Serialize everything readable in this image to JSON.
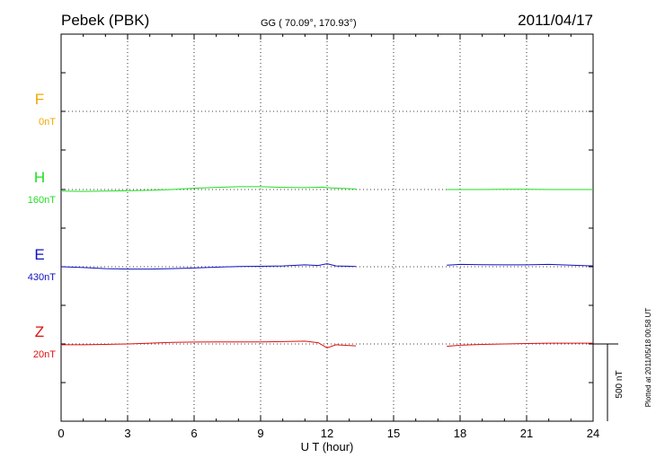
{
  "header": {
    "station": "Pebek (PBK)",
    "coords": "GG ( 70.09°, 170.93°)",
    "date": "2011/04/17"
  },
  "footer": {
    "plotted": "Plotted at 2011/05/18 00:58 UT"
  },
  "chart_data": {
    "type": "line",
    "xlabel": "U T (hour)",
    "xlim": [
      0,
      24
    ],
    "xticks": [
      0,
      3,
      6,
      9,
      12,
      15,
      18,
      21,
      24
    ],
    "scale_bar": {
      "label": "500 nT",
      "nT": 500
    },
    "components": [
      {
        "name": "F",
        "offset_label": "0nT",
        "color": "#f0a800",
        "samples": []
      },
      {
        "name": "H",
        "offset_label": "160nT",
        "color": "#22dd22",
        "samples": [
          [
            0,
            -10
          ],
          [
            1,
            -12
          ],
          [
            2,
            -10
          ],
          [
            3,
            -8
          ],
          [
            4,
            -5
          ],
          [
            5,
            0
          ],
          [
            6,
            8
          ],
          [
            7,
            14
          ],
          [
            8,
            18
          ],
          [
            9,
            18
          ],
          [
            10,
            14
          ],
          [
            11,
            12
          ],
          [
            11.8,
            15
          ],
          [
            12.2,
            10
          ],
          [
            13,
            5
          ],
          [
            13.3,
            3
          ],
          [
            17.4,
            0
          ],
          [
            18,
            0
          ],
          [
            19,
            0
          ],
          [
            20,
            2
          ],
          [
            21,
            2
          ],
          [
            22,
            0
          ],
          [
            23,
            0
          ],
          [
            24,
            0
          ]
        ]
      },
      {
        "name": "E",
        "offset_label": "430nT",
        "color": "#1010c0",
        "samples": [
          [
            0,
            0
          ],
          [
            1,
            -5
          ],
          [
            2,
            -12
          ],
          [
            3,
            -15
          ],
          [
            4,
            -15
          ],
          [
            5,
            -12
          ],
          [
            6,
            -8
          ],
          [
            7,
            -3
          ],
          [
            8,
            2
          ],
          [
            9,
            3
          ],
          [
            10,
            5
          ],
          [
            11,
            12
          ],
          [
            11.6,
            8
          ],
          [
            12.0,
            20
          ],
          [
            12.4,
            5
          ],
          [
            13,
            3
          ],
          [
            13.3,
            2
          ],
          [
            17.4,
            10
          ],
          [
            18,
            15
          ],
          [
            19,
            13
          ],
          [
            20,
            12
          ],
          [
            21,
            12
          ],
          [
            22,
            15
          ],
          [
            23,
            10
          ],
          [
            24,
            5
          ]
        ]
      },
      {
        "name": "Z",
        "offset_label": "20nT",
        "color": "#dd1010",
        "samples": [
          [
            0,
            -5
          ],
          [
            1,
            -5
          ],
          [
            2,
            -3
          ],
          [
            3,
            0
          ],
          [
            4,
            5
          ],
          [
            5,
            10
          ],
          [
            6,
            12
          ],
          [
            7,
            13
          ],
          [
            8,
            13
          ],
          [
            9,
            13
          ],
          [
            10,
            15
          ],
          [
            11,
            18
          ],
          [
            11.6,
            8
          ],
          [
            12.0,
            -25
          ],
          [
            12.4,
            -5
          ],
          [
            13,
            -10
          ],
          [
            13.3,
            -12
          ],
          [
            17.4,
            -15
          ],
          [
            18,
            -8
          ],
          [
            19,
            -3
          ],
          [
            20,
            0
          ],
          [
            21,
            3
          ],
          [
            22,
            5
          ],
          [
            23,
            5
          ],
          [
            24,
            5
          ]
        ]
      }
    ]
  }
}
